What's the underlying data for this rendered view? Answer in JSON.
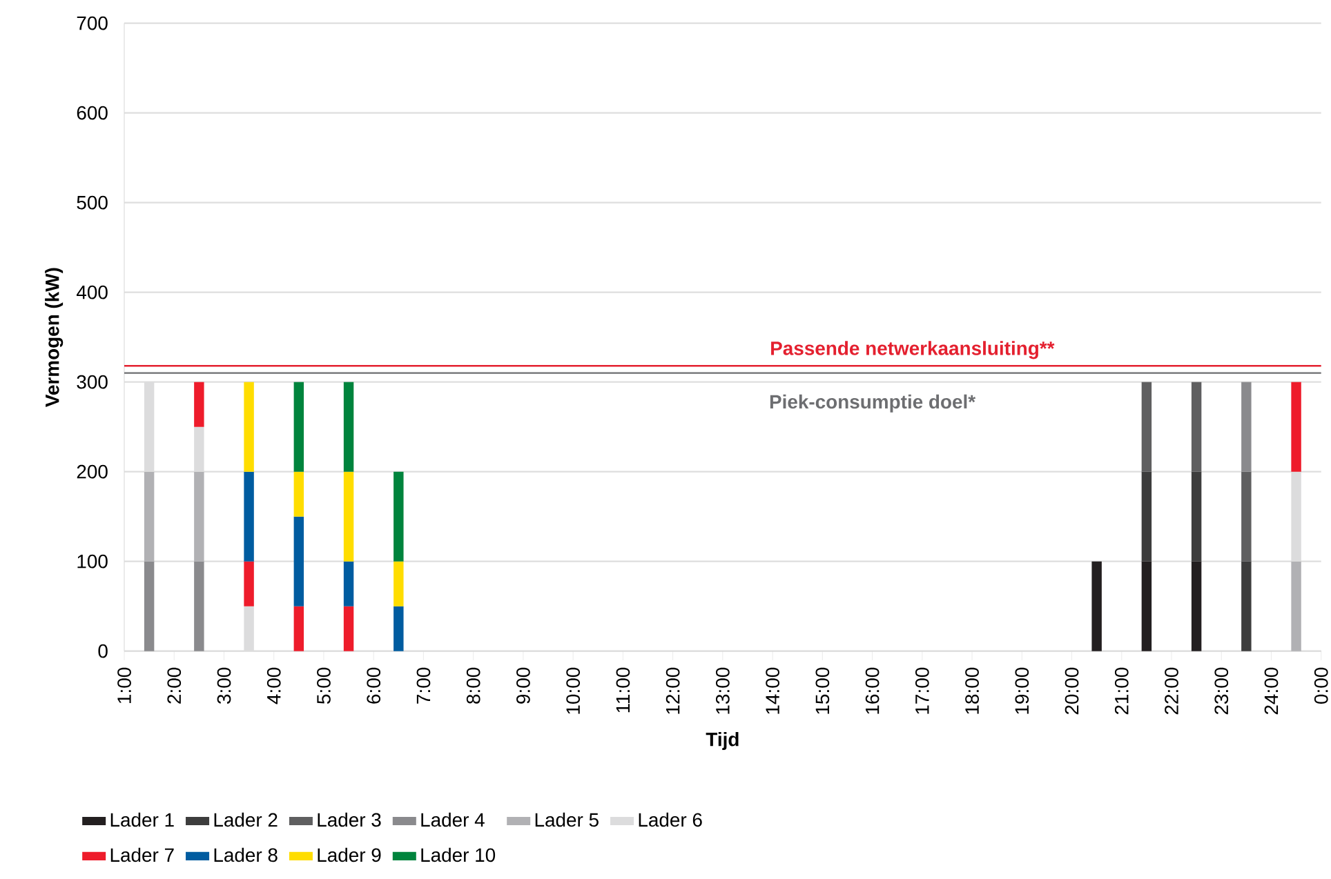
{
  "chart_data": {
    "type": "bar",
    "stacked": true,
    "xlabel": "Tijd",
    "ylabel": "Vermogen (kW)",
    "x": [
      1.5,
      2.5,
      3.5,
      4.5,
      5.5,
      6.5,
      20.5,
      21.5,
      22.5,
      23.5,
      24.5
    ],
    "series": [
      {
        "name": "Lader 1",
        "color": "#231f20",
        "values": [
          null,
          null,
          null,
          null,
          null,
          null,
          100,
          100,
          100,
          null,
          null
        ]
      },
      {
        "name": "Lader 2",
        "color": "#3d3d3d",
        "values": [
          null,
          null,
          null,
          null,
          null,
          null,
          null,
          100,
          100,
          100,
          null
        ]
      },
      {
        "name": "Lader 3",
        "color": "#5f5f60",
        "values": [
          null,
          null,
          null,
          null,
          null,
          null,
          null,
          100,
          100,
          100,
          null
        ]
      },
      {
        "name": "Lader 4",
        "color": "#8a8a8d",
        "values": [
          100,
          100,
          null,
          null,
          null,
          null,
          null,
          null,
          null,
          100,
          null
        ]
      },
      {
        "name": "Lader 5",
        "color": "#b1b1b4",
        "values": [
          100,
          100,
          null,
          null,
          null,
          null,
          null,
          null,
          null,
          null,
          100
        ]
      },
      {
        "name": "Lader 6",
        "color": "#dcdcdd",
        "values": [
          100,
          50,
          50,
          null,
          null,
          null,
          null,
          null,
          null,
          null,
          100
        ]
      },
      {
        "name": "Lader 7",
        "color": "#ee1c2b",
        "values": [
          null,
          50,
          50,
          50,
          50,
          null,
          null,
          null,
          null,
          null,
          100
        ]
      },
      {
        "name": "Lader 8",
        "color": "#005ca0",
        "values": [
          null,
          null,
          100,
          100,
          50,
          50,
          null,
          null,
          null,
          null,
          null
        ]
      },
      {
        "name": "Lader 9",
        "color": "#ffdd00",
        "values": [
          null,
          null,
          100,
          50,
          100,
          50,
          null,
          null,
          null,
          null,
          null
        ]
      },
      {
        "name": "Lader 10",
        "color": "#00843d",
        "values": [
          null,
          null,
          null,
          100,
          100,
          100,
          null,
          null,
          null,
          null,
          null
        ]
      }
    ],
    "xlim": [
      1,
      25
    ],
    "xticks": [
      {
        "value": 1,
        "label": "1:00"
      },
      {
        "value": 2,
        "label": "2:00"
      },
      {
        "value": 3,
        "label": "3:00"
      },
      {
        "value": 4,
        "label": "4:00"
      },
      {
        "value": 5,
        "label": "5:00"
      },
      {
        "value": 6,
        "label": "6:00"
      },
      {
        "value": 7,
        "label": "7:00"
      },
      {
        "value": 8,
        "label": "8:00"
      },
      {
        "value": 9,
        "label": "9:00"
      },
      {
        "value": 10,
        "label": "10:00"
      },
      {
        "value": 11,
        "label": "11:00"
      },
      {
        "value": 12,
        "label": "12:00"
      },
      {
        "value": 13,
        "label": "13:00"
      },
      {
        "value": 14,
        "label": "14:00"
      },
      {
        "value": 15,
        "label": "15:00"
      },
      {
        "value": 16,
        "label": "16:00"
      },
      {
        "value": 17,
        "label": "17:00"
      },
      {
        "value": 18,
        "label": "18:00"
      },
      {
        "value": 19,
        "label": "19:00"
      },
      {
        "value": 20,
        "label": "20:00"
      },
      {
        "value": 21,
        "label": "21:00"
      },
      {
        "value": 22,
        "label": "22:00"
      },
      {
        "value": 23,
        "label": "23:00"
      },
      {
        "value": 24,
        "label": "24:00"
      },
      {
        "value": 25,
        "label": "0:00"
      }
    ],
    "ylim": [
      0,
      700
    ],
    "yticks": [
      0,
      100,
      200,
      300,
      400,
      500,
      600,
      700
    ],
    "ref_lines": [
      {
        "axis": "y",
        "value": 318,
        "label": "Passende netwerkaansluiting**",
        "color": "#e4202f"
      },
      {
        "axis": "y",
        "value": 310,
        "label": "Piek-consumptie doel*",
        "color": "#6d6e71"
      }
    ],
    "grid": "y",
    "legend": "bottom"
  }
}
